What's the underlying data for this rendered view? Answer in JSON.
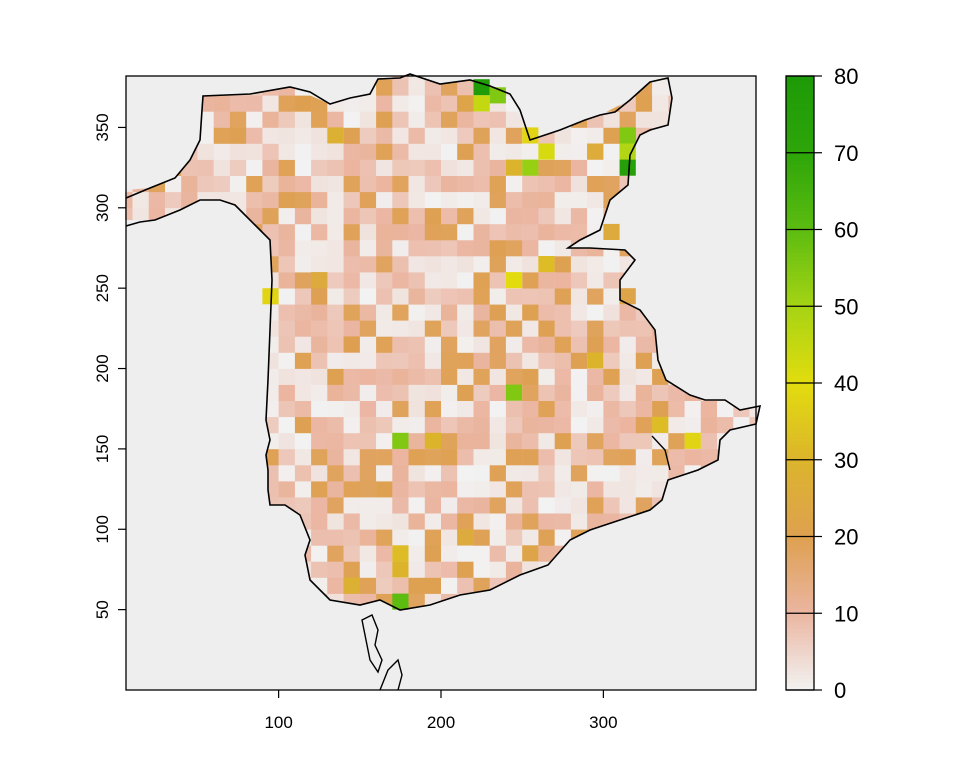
{
  "chart_data": {
    "type": "heatmap",
    "title": "",
    "xlabel": "",
    "ylabel": "",
    "xlim": [
      6,
      394
    ],
    "ylim": [
      0,
      382
    ],
    "x_ticks": [
      100,
      200,
      300
    ],
    "y_ticks": [
      50,
      100,
      150,
      200,
      250,
      300,
      350
    ],
    "x_tick_labels": [
      "100",
      "200",
      "300"
    ],
    "y_tick_labels": [
      "50",
      "100",
      "150",
      "200",
      "250",
      "300",
      "350"
    ],
    "cell_size": 10,
    "colorbar": {
      "min": 0,
      "max": 80,
      "ticks": [
        0,
        10,
        20,
        30,
        40,
        50,
        60,
        70,
        80
      ],
      "tick_labels": [
        "0",
        "10",
        "20",
        "30",
        "40",
        "50",
        "60",
        "70",
        "80"
      ],
      "color_stops": [
        {
          "value": 0,
          "color": "#f2f2f2"
        },
        {
          "value": 10,
          "color": "#ebb6a2"
        },
        {
          "value": 20,
          "color": "#dea050"
        },
        {
          "value": 30,
          "color": "#dcb42c"
        },
        {
          "value": 40,
          "color": "#e2dc0e"
        },
        {
          "value": 50,
          "color": "#a6d414"
        },
        {
          "value": 60,
          "color": "#5cbc10"
        },
        {
          "value": 70,
          "color": "#2ea60a"
        },
        {
          "value": 80,
          "color": "#1d9a07"
        }
      ],
      "placement": "right"
    },
    "background_color": "#eeeeee",
    "hotspots": [
      {
        "x": 220,
        "y": 370,
        "value": 78
      },
      {
        "x": 230,
        "y": 365,
        "value": 55
      },
      {
        "x": 220,
        "y": 360,
        "value": 45
      },
      {
        "x": 250,
        "y": 340,
        "value": 38
      },
      {
        "x": 260,
        "y": 330,
        "value": 42
      },
      {
        "x": 250,
        "y": 320,
        "value": 52
      },
      {
        "x": 240,
        "y": 320,
        "value": 30
      },
      {
        "x": 310,
        "y": 340,
        "value": 55
      },
      {
        "x": 310,
        "y": 330,
        "value": 48
      },
      {
        "x": 310,
        "y": 320,
        "value": 75
      },
      {
        "x": 130,
        "y": 340,
        "value": 28
      },
      {
        "x": 240,
        "y": 250,
        "value": 40
      },
      {
        "x": 260,
        "y": 260,
        "value": 32
      },
      {
        "x": 90,
        "y": 240,
        "value": 38
      },
      {
        "x": 120,
        "y": 250,
        "value": 25
      },
      {
        "x": 240,
        "y": 180,
        "value": 55
      },
      {
        "x": 170,
        "y": 150,
        "value": 55
      },
      {
        "x": 190,
        "y": 150,
        "value": 30
      },
      {
        "x": 290,
        "y": 200,
        "value": 30
      },
      {
        "x": 330,
        "y": 160,
        "value": 32
      },
      {
        "x": 350,
        "y": 150,
        "value": 38
      },
      {
        "x": 170,
        "y": 80,
        "value": 32
      },
      {
        "x": 170,
        "y": 70,
        "value": 30
      },
      {
        "x": 140,
        "y": 60,
        "value": 28
      },
      {
        "x": 170,
        "y": 50,
        "value": 60
      },
      {
        "x": 210,
        "y": 90,
        "value": 25
      },
      {
        "x": 250,
        "y": 80,
        "value": 22
      },
      {
        "x": 290,
        "y": 330,
        "value": 26
      },
      {
        "x": 300,
        "y": 280,
        "value": 25
      },
      {
        "x": 210,
        "y": 360,
        "value": 22
      },
      {
        "x": 140,
        "y": 210,
        "value": 20
      },
      {
        "x": 310,
        "y": 240,
        "value": 22
      }
    ]
  }
}
